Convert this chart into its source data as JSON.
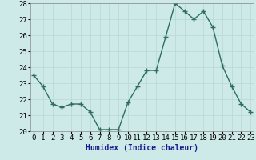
{
  "x": [
    0,
    1,
    2,
    3,
    4,
    5,
    6,
    7,
    8,
    9,
    10,
    11,
    12,
    13,
    14,
    15,
    16,
    17,
    18,
    19,
    20,
    21,
    22,
    23
  ],
  "y": [
    23.5,
    22.8,
    21.7,
    21.5,
    21.7,
    21.7,
    21.2,
    20.1,
    20.1,
    20.1,
    21.8,
    22.8,
    23.8,
    23.8,
    25.9,
    28.0,
    27.5,
    27.0,
    27.5,
    26.5,
    24.1,
    22.8,
    21.7,
    21.2
  ],
  "title": "",
  "xlabel": "Humidex (Indice chaleur)",
  "ylabel": "",
  "xlim": [
    0,
    23
  ],
  "ylim": [
    20,
    28
  ],
  "yticks": [
    20,
    21,
    22,
    23,
    24,
    25,
    26,
    27,
    28
  ],
  "xticks": [
    0,
    1,
    2,
    3,
    4,
    5,
    6,
    7,
    8,
    9,
    10,
    11,
    12,
    13,
    14,
    15,
    16,
    17,
    18,
    19,
    20,
    21,
    22,
    23
  ],
  "line_color": "#2d6e5e",
  "marker": "+",
  "marker_size": 4,
  "bg_color": "#ceeae8",
  "grid_color": "#b8d8d4",
  "axis_bg": "#ceeae8",
  "xlabel_color": "#1a1a8c",
  "xlabel_fontsize": 7,
  "tick_fontsize": 6.5,
  "line_width": 1.0
}
